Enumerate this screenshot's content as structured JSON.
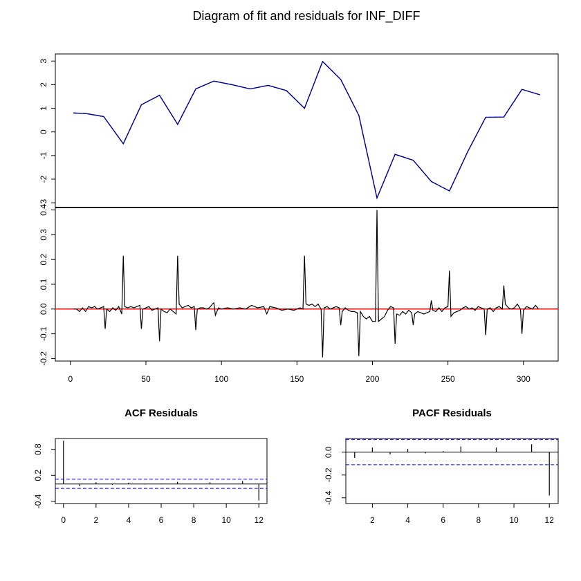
{
  "page": {
    "title": "Diagram of fit and residuals for INF_DIFF"
  },
  "colors": {
    "axis": "#000000",
    "fitted": "#00008b",
    "actual": "#4169e1",
    "residual": "#000000",
    "zero_line": "#ff0000",
    "ci_band": "#0000ff"
  },
  "chart_data": [
    {
      "type": "line",
      "name": "fit",
      "ylim": [
        -3.2,
        3.3
      ],
      "xlim": [
        -10,
        323
      ],
      "yticks": [
        -3,
        -2,
        -1,
        0,
        1,
        2,
        3
      ],
      "grid": false,
      "series": [
        {
          "name": "",
          "x": [
            2,
            10,
            22,
            35,
            47,
            59,
            71,
            83,
            95,
            107,
            119,
            131,
            143,
            155,
            167,
            179,
            191,
            203,
            215,
            227,
            239,
            251,
            263,
            275,
            287,
            299,
            311
          ],
          "y": [
            0.8,
            0.78,
            0.65,
            -0.5,
            1.15,
            1.55,
            0.32,
            1.82,
            2.15,
            2.0,
            1.82,
            1.97,
            1.75,
            1.0,
            2.98,
            2.22,
            0.7,
            -2.8,
            -0.95,
            -1.2,
            -2.1,
            -2.5,
            -0.85,
            0.62,
            0.63,
            1.8,
            1.57
          ]
        }
      ]
    },
    {
      "type": "line",
      "name": "residuals",
      "ylim": [
        -0.21,
        0.41
      ],
      "xlim": [
        -10,
        323
      ],
      "yticks": [
        -0.2,
        -0.1,
        0.0,
        0.1,
        0.2,
        0.3,
        0.4
      ],
      "xticks": [
        0,
        50,
        100,
        150,
        200,
        250,
        300
      ],
      "grid": false,
      "series": [
        {
          "name": "",
          "x": [
            2,
            4,
            6,
            8,
            10,
            12,
            14,
            16,
            18,
            20,
            22,
            23,
            24,
            26,
            28,
            30,
            32,
            34,
            35,
            36,
            38,
            40,
            42,
            44,
            46,
            47,
            48,
            50,
            52,
            54,
            56,
            58,
            59,
            60,
            62,
            64,
            66,
            68,
            70,
            71,
            72,
            74,
            76,
            78,
            80,
            82,
            83,
            84,
            86,
            88,
            90,
            92,
            94,
            95,
            96,
            98,
            100,
            104,
            108,
            112,
            116,
            120,
            124,
            128,
            130,
            132,
            136,
            140,
            144,
            148,
            152,
            154,
            155,
            156,
            158,
            160,
            162,
            164,
            166,
            167,
            168,
            170,
            172,
            174,
            176,
            178,
            179,
            180,
            182,
            184,
            186,
            188,
            190,
            191,
            192,
            194,
            196,
            198,
            200,
            202,
            203,
            204,
            206,
            208,
            210,
            212,
            214,
            215,
            216,
            218,
            220,
            222,
            224,
            226,
            227,
            228,
            230,
            232,
            234,
            236,
            238,
            239,
            240,
            242,
            244,
            246,
            248,
            250,
            251,
            252,
            254,
            256,
            258,
            260,
            262,
            264,
            266,
            268,
            270,
            272,
            274,
            275,
            276,
            278,
            280,
            282,
            284,
            286,
            287,
            288,
            290,
            292,
            294,
            296,
            298,
            299,
            300,
            302,
            304,
            306,
            308,
            310
          ],
          "y": [
            0.0,
            0.0,
            -0.01,
            0.005,
            -0.01,
            0.01,
            0.005,
            0.01,
            0.0,
            0.005,
            0.01,
            -0.08,
            0.0,
            -0.01,
            0.005,
            -0.005,
            0.01,
            -0.02,
            0.215,
            0.01,
            0.005,
            0.01,
            0.005,
            0.01,
            0.015,
            -0.08,
            0.0,
            0.005,
            0.01,
            -0.005,
            0.0,
            0.005,
            -0.13,
            0.0,
            -0.01,
            -0.015,
            0.0,
            -0.01,
            -0.02,
            0.215,
            0.02,
            0.005,
            0.01,
            0.015,
            0.005,
            0.01,
            -0.085,
            0.0,
            0.005,
            0.005,
            0.0,
            0.005,
            0.02,
            0.025,
            -0.025,
            0.005,
            0.0,
            0.005,
            0.0,
            0.005,
            0.0,
            0.015,
            0.005,
            0.01,
            -0.02,
            0.01,
            0.005,
            -0.005,
            0.0,
            -0.005,
            0.005,
            0.0,
            0.215,
            0.02,
            0.015,
            0.02,
            0.01,
            0.02,
            0.0,
            -0.195,
            0.005,
            0.01,
            0.0,
            0.005,
            0.01,
            0.005,
            -0.065,
            -0.01,
            0.005,
            -0.005,
            -0.01,
            -0.01,
            -0.015,
            -0.19,
            -0.01,
            -0.03,
            -0.04,
            -0.03,
            -0.05,
            -0.05,
            0.4,
            -0.05,
            -0.04,
            -0.03,
            -0.005,
            0.01,
            0.005,
            -0.14,
            -0.02,
            -0.025,
            -0.01,
            -0.02,
            -0.005,
            -0.015,
            -0.065,
            -0.02,
            -0.01,
            -0.015,
            -0.02,
            -0.015,
            -0.01,
            0.035,
            -0.005,
            -0.01,
            0.005,
            -0.01,
            0.005,
            0.01,
            0.155,
            -0.03,
            -0.015,
            -0.01,
            -0.005,
            0.005,
            0.01,
            0.0,
            0.005,
            -0.005,
            0.01,
            0.005,
            0.0,
            -0.105,
            0.0,
            0.005,
            -0.01,
            0.005,
            0.01,
            0.0,
            0.095,
            0.02,
            0.005,
            0.0,
            0.005,
            0.02,
            0.0,
            -0.1,
            -0.005,
            0.01,
            0.005,
            0.0,
            0.015,
            0.0
          ]
        }
      ]
    },
    {
      "type": "bar",
      "name": "acf",
      "title": "ACF Residuals",
      "xlim": [
        -0.5,
        12.5
      ],
      "ylim": [
        -0.45,
        1.05
      ],
      "xticks": [
        0,
        2,
        4,
        6,
        8,
        10,
        12
      ],
      "yticks": [
        -0.4,
        0.2,
        0.8
      ],
      "ytick_labels": [
        "-0.4",
        "0.2",
        "0.8"
      ],
      "ci": [
        -0.1,
        0.11
      ],
      "x": [
        0,
        1,
        2,
        3,
        4,
        5,
        6,
        7,
        8,
        9,
        10,
        11,
        12
      ],
      "values": [
        1.0,
        -0.05,
        0.04,
        -0.02,
        0.03,
        -0.01,
        0.01,
        0.05,
        0.0,
        0.04,
        0.0,
        0.07,
        -0.38
      ]
    },
    {
      "type": "bar",
      "name": "pacf",
      "title": "PACF Residuals",
      "xlim": [
        0.5,
        12.5
      ],
      "ylim": [
        -0.45,
        0.12
      ],
      "xticks": [
        2,
        4,
        6,
        8,
        10,
        12
      ],
      "yticks": [
        -0.4,
        -0.2,
        0.0
      ],
      "ytick_labels": [
        "-0.4",
        "-0.2",
        "0.0"
      ],
      "ci": [
        -0.11,
        0.11
      ],
      "x": [
        1,
        2,
        3,
        4,
        5,
        6,
        7,
        8,
        9,
        10,
        11,
        12
      ],
      "values": [
        -0.05,
        0.04,
        -0.02,
        0.03,
        -0.01,
        0.01,
        0.05,
        0.0,
        0.04,
        0.0,
        0.07,
        -0.38
      ]
    }
  ]
}
